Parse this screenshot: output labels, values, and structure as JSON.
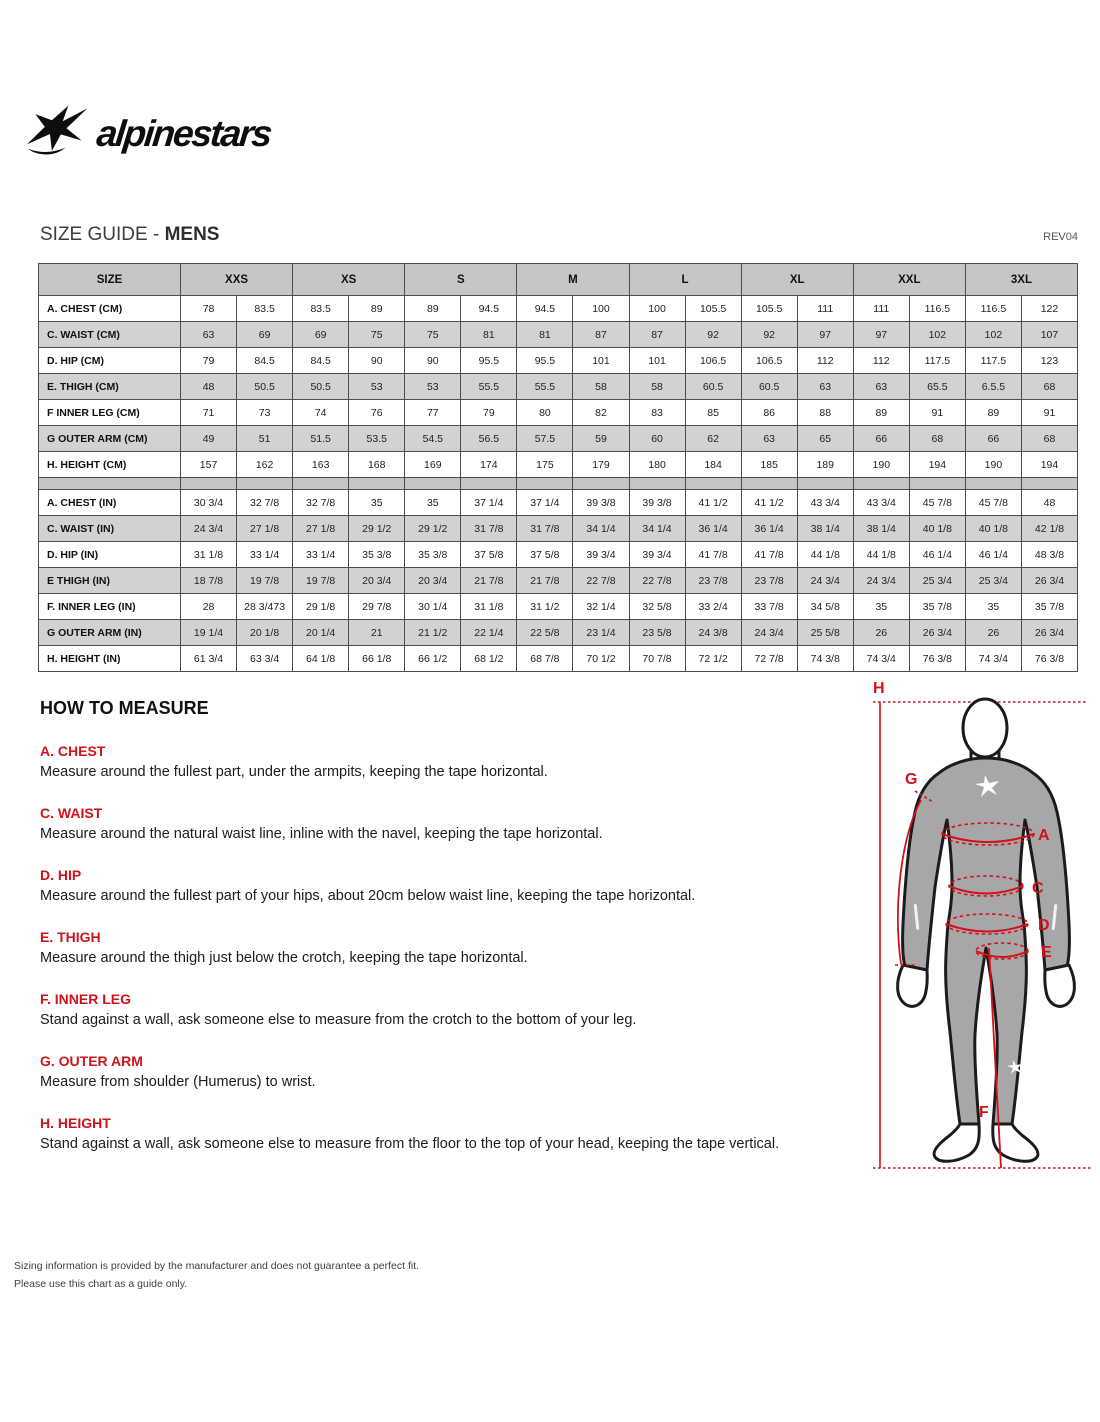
{
  "logo": {
    "wordmark": "alpinestars"
  },
  "page": {
    "title_prefix": "SIZE GUIDE - ",
    "title_bold": "MENS",
    "revision": "REV04"
  },
  "size_table": {
    "corner_label": "SIZE",
    "sizes": [
      "XXS",
      "XS",
      "S",
      "M",
      "L",
      "XL",
      "XXL",
      "3XL"
    ],
    "rows_cm": [
      {
        "label": "A. CHEST (CM)",
        "values": [
          "78",
          "83.5",
          "83.5",
          "89",
          "89",
          "94.5",
          "94.5",
          "100",
          "100",
          "105.5",
          "105.5",
          "111",
          "111",
          "116.5",
          "116.5",
          "122"
        ]
      },
      {
        "label": "C. WAIST (CM)",
        "values": [
          "63",
          "69",
          "69",
          "75",
          "75",
          "81",
          "81",
          "87",
          "87",
          "92",
          "92",
          "97",
          "97",
          "102",
          "102",
          "107"
        ]
      },
      {
        "label": "D. HIP (CM)",
        "values": [
          "79",
          "84.5",
          "84.5",
          "90",
          "90",
          "95.5",
          "95.5",
          "101",
          "101",
          "106.5",
          "106.5",
          "112",
          "112",
          "117.5",
          "117.5",
          "123"
        ]
      },
      {
        "label": "E. THIGH (CM)",
        "values": [
          "48",
          "50.5",
          "50.5",
          "53",
          "53",
          "55.5",
          "55.5",
          "58",
          "58",
          "60.5",
          "60.5",
          "63",
          "63",
          "65.5",
          "6.5.5",
          "68"
        ]
      },
      {
        "label": "F INNER LEG (CM)",
        "values": [
          "71",
          "73",
          "74",
          "76",
          "77",
          "79",
          "80",
          "82",
          "83",
          "85",
          "86",
          "88",
          "89",
          "91",
          "89",
          "91"
        ]
      },
      {
        "label": "G OUTER ARM (CM)",
        "values": [
          "49",
          "51",
          "51.5",
          "53.5",
          "54.5",
          "56.5",
          "57.5",
          "59",
          "60",
          "62",
          "63",
          "65",
          "66",
          "68",
          "66",
          "68"
        ]
      },
      {
        "label": "H. HEIGHT (CM)",
        "values": [
          "157",
          "162",
          "163",
          "168",
          "169",
          "174",
          "175",
          "179",
          "180",
          "184",
          "185",
          "189",
          "190",
          "194",
          "190",
          "194"
        ]
      }
    ],
    "rows_in": [
      {
        "label": "A. CHEST (IN)",
        "values": [
          "30 3/4",
          "32 7/8",
          "32 7/8",
          "35",
          "35",
          "37 1/4",
          "37 1/4",
          "39 3/8",
          "39 3/8",
          "41 1/2",
          "41 1/2",
          "43 3/4",
          "43 3/4",
          "45 7/8",
          "45 7/8",
          "48"
        ]
      },
      {
        "label": "C. WAIST (IN)",
        "values": [
          "24 3/4",
          "27 1/8",
          "27 1/8",
          "29 1/2",
          "29 1/2",
          "31 7/8",
          "31 7/8",
          "34 1/4",
          "34 1/4",
          "36 1/4",
          "36 1/4",
          "38 1/4",
          "38 1/4",
          "40 1/8",
          "40 1/8",
          "42 1/8"
        ]
      },
      {
        "label": "D. HIP (IN)",
        "values": [
          "31 1/8",
          "33 1/4",
          "33 1/4",
          "35 3/8",
          "35 3/8",
          "37 5/8",
          "37 5/8",
          "39 3/4",
          "39 3/4",
          "41 7/8",
          "41 7/8",
          "44 1/8",
          "44 1/8",
          "46 1/4",
          "46 1/4",
          "48 3/8"
        ]
      },
      {
        "label": "E THIGH (IN)",
        "values": [
          "18 7/8",
          "19 7/8",
          "19 7/8",
          "20 3/4",
          "20 3/4",
          "21 7/8",
          "21 7/8",
          "22 7/8",
          "22 7/8",
          "23 7/8",
          "23 7/8",
          "24 3/4",
          "24 3/4",
          "25 3/4",
          "25 3/4",
          "26 3/4"
        ]
      },
      {
        "label": "F. INNER LEG (IN)",
        "values": [
          "28",
          "28 3/473",
          "29 1/8",
          "29 7/8",
          "30 1/4",
          "31 1/8",
          "31 1/2",
          "32 1/4",
          "32 5/8",
          "33 2/4",
          "33 7/8",
          "34 5/8",
          "35",
          "35 7/8",
          "35",
          "35 7/8"
        ]
      },
      {
        "label": "G OUTER ARM (IN)",
        "values": [
          "19 1/4",
          "20 1/8",
          "20 1/4",
          "21",
          "21 1/2",
          "22 1/4",
          "22 5/8",
          "23 1/4",
          "23 5/8",
          "24 3/8",
          "24 3/4",
          "25 5/8",
          "26",
          "26 3/4",
          "26",
          "26 3/4"
        ]
      },
      {
        "label": "H. HEIGHT (IN)",
        "values": [
          "61 3/4",
          "63 3/4",
          "64 1/8",
          "66 1/8",
          "66 1/2",
          "68 1/2",
          "68 7/8",
          "70 1/2",
          "70 7/8",
          "72 1/2",
          "72 7/8",
          "74 3/8",
          "74 3/4",
          "76 3/8",
          "74 3/4",
          "76 3/8"
        ]
      }
    ]
  },
  "how_to": {
    "title": "HOW TO MEASURE",
    "sections": [
      {
        "title": "A. CHEST",
        "desc": "Measure around the fullest part, under the armpits, keeping the tape horizontal."
      },
      {
        "title": "C. WAIST",
        "desc": "Measure around the natural waist line, inline with the navel, keeping the tape horizontal."
      },
      {
        "title": "D. HIP",
        "desc": "Measure around the fullest part of your hips, about 20cm below waist line, keeping the tape horizontal."
      },
      {
        "title": "E. THIGH",
        "desc": "Measure around the thigh just below the crotch, keeping the tape horizontal."
      },
      {
        "title": "F. INNER LEG",
        "desc": "Stand against a wall, ask someone else to measure from the crotch to the bottom of your leg."
      },
      {
        "title": "G. OUTER ARM",
        "desc": "Measure from shoulder (Humerus) to wrist."
      },
      {
        "title": "H. HEIGHT",
        "desc": "Stand against a wall, ask someone else to measure from the floor to the top of your head, keeping the tape vertical."
      }
    ]
  },
  "figure": {
    "labels": {
      "h": "H",
      "g": "G",
      "a": "A",
      "c": "C",
      "d": "D",
      "e": "E",
      "f": "F"
    }
  },
  "footer": {
    "line1": "Sizing information is provided by the manufacturer and does not guarantee a perfect fit.",
    "line2": "Please use this chart as a guide only."
  },
  "colors": {
    "accent_red": "#d0121b",
    "header_gray": "#c6c6c6",
    "stripe_gray": "#d2d2d2",
    "body_gray": "#a7a7a7"
  }
}
